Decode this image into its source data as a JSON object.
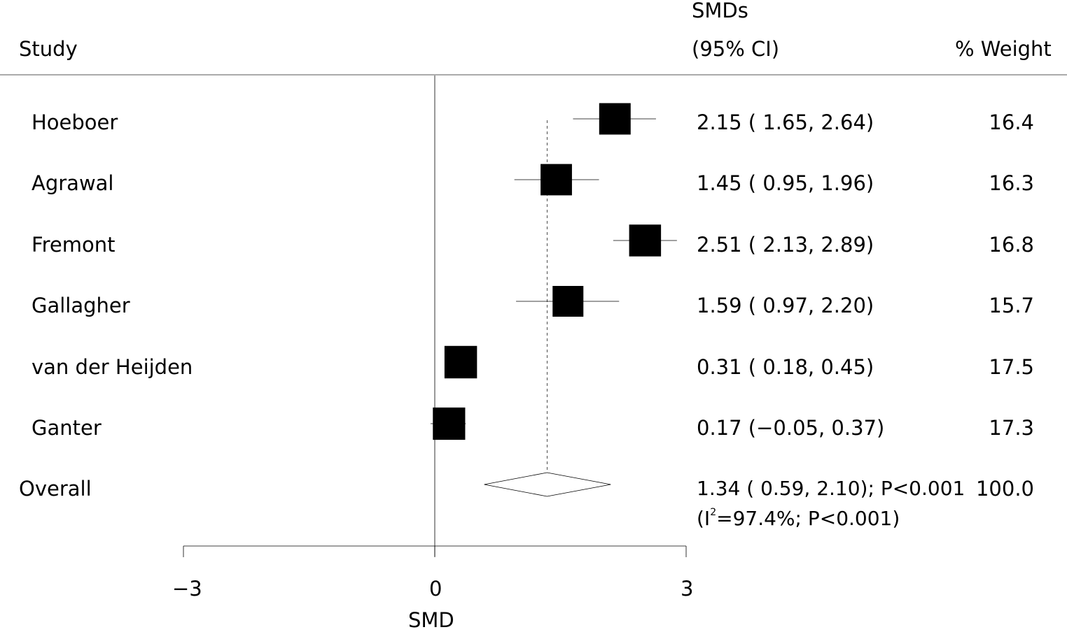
{
  "header": {
    "study": "Study",
    "smd_line1": "SMDs",
    "smd_line2": "(95% CI)",
    "weight": "% Weight"
  },
  "rows": [
    {
      "study": "Hoeboer",
      "ci_text": "2.15 ( 1.65, 2.64)",
      "weight_text": "16.4"
    },
    {
      "study": "Agrawal",
      "ci_text": "1.45 ( 0.95, 1.96)",
      "weight_text": "16.3"
    },
    {
      "study": "Fremont",
      "ci_text": "2.51 ( 2.13, 2.89)",
      "weight_text": "16.8"
    },
    {
      "study": "Gallagher",
      "ci_text": "1.59 ( 0.97, 2.20)",
      "weight_text": "15.7"
    },
    {
      "study": "van der Heijden",
      "ci_text": "0.31 ( 0.18, 0.45)",
      "weight_text": "17.5"
    },
    {
      "study": "Ganter",
      "ci_text": "0.17 (−0.05, 0.37)",
      "weight_text": "17.3"
    }
  ],
  "overall": {
    "label": "Overall",
    "ci_text": "1.34 ( 0.59, 2.10); P<0.001",
    "het_prefix": "(I",
    "het_sup": "2",
    "het_suffix": "=97.4%; P<0.001)",
    "weight_text": "100.0"
  },
  "axis": {
    "ticks": [
      "−3",
      "0",
      "3"
    ],
    "label": "SMD"
  },
  "chart_data": {
    "type": "forest",
    "xlabel": "SMD",
    "xlim": [
      -3,
      3
    ],
    "xticks": [
      -3,
      0,
      3
    ],
    "studies": [
      {
        "name": "Hoeboer",
        "smd": 2.15,
        "ci": [
          1.65,
          2.64
        ],
        "weight": 16.4
      },
      {
        "name": "Agrawal",
        "smd": 1.45,
        "ci": [
          0.95,
          1.96
        ],
        "weight": 16.3
      },
      {
        "name": "Fremont",
        "smd": 2.51,
        "ci": [
          2.13,
          2.89
        ],
        "weight": 16.8
      },
      {
        "name": "Gallagher",
        "smd": 1.59,
        "ci": [
          0.97,
          2.2
        ],
        "weight": 15.7
      },
      {
        "name": "van der Heijden",
        "smd": 0.31,
        "ci": [
          0.18,
          0.45
        ],
        "weight": 17.5
      },
      {
        "name": "Ganter",
        "smd": 0.17,
        "ci": [
          -0.05,
          0.37
        ],
        "weight": 17.3
      }
    ],
    "overall": {
      "smd": 1.34,
      "ci": [
        0.59,
        2.1
      ],
      "weight": 100.0,
      "p": "P<0.001",
      "i2": "97.4%",
      "i2_p": "P<0.001"
    },
    "colors": {
      "marker": "#000000",
      "lines": "#000000",
      "separator": "#555555"
    }
  }
}
